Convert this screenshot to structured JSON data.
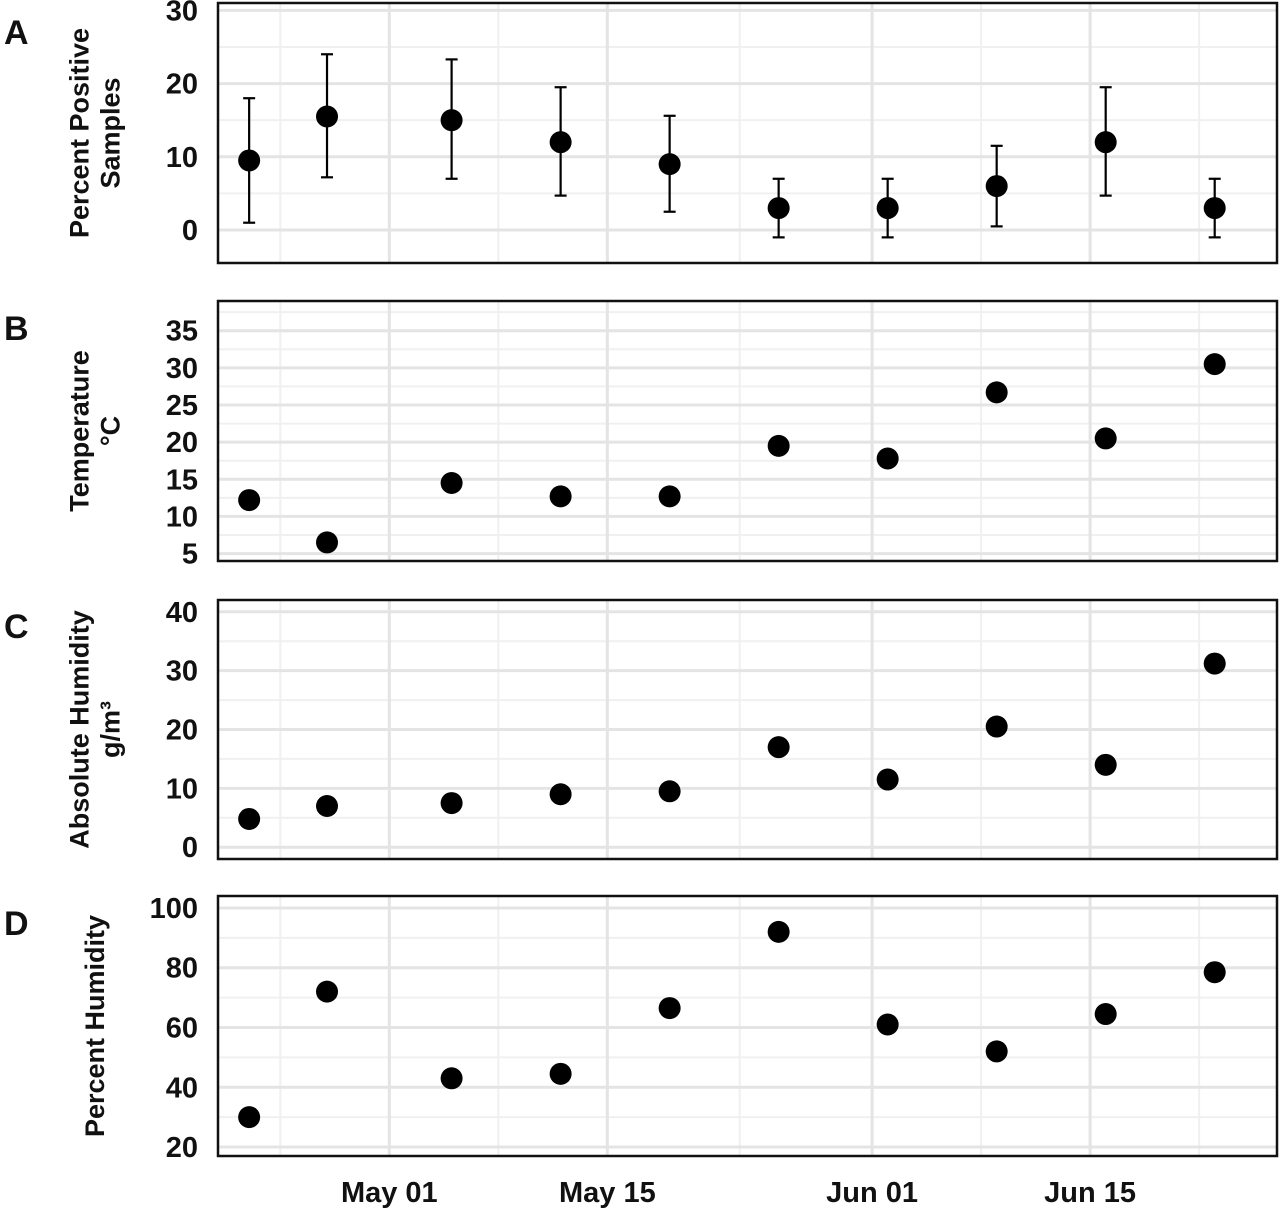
{
  "chart_data": [
    {
      "panel": "A",
      "type": "scatter",
      "ylabel": [
        "Percent Positive",
        "Samples"
      ],
      "ylim": [
        -4.5,
        31
      ],
      "yticks": [
        0,
        10,
        20,
        30
      ],
      "x": [
        "2020-04-22",
        "2020-04-27",
        "2020-05-05",
        "2020-05-12",
        "2020-05-19",
        "2020-05-26",
        "2020-06-02",
        "2020-06-09",
        "2020-06-16",
        "2020-06-23"
      ],
      "y": [
        9.5,
        15.5,
        15.0,
        12.0,
        9.0,
        3.0,
        3.0,
        6.0,
        12.0,
        3.0
      ],
      "error_low": [
        1.0,
        7.2,
        7.0,
        4.7,
        2.5,
        -1.0,
        -1.0,
        0.5,
        4.7,
        -1.0
      ],
      "error_high": [
        18.0,
        24.0,
        23.3,
        19.5,
        15.6,
        7.0,
        7.0,
        11.5,
        19.5,
        7.0
      ],
      "xlim": [
        "2020-04-20",
        "2020-06-27"
      ],
      "grid": true
    },
    {
      "panel": "B",
      "type": "scatter",
      "ylabel": [
        "Temperature",
        "°C"
      ],
      "ylim": [
        4,
        39
      ],
      "yticks": [
        5,
        10,
        15,
        20,
        25,
        30,
        35
      ],
      "x": [
        "2020-04-22",
        "2020-04-27",
        "2020-05-05",
        "2020-05-12",
        "2020-05-19",
        "2020-05-26",
        "2020-06-02",
        "2020-06-09",
        "2020-06-16",
        "2020-06-23"
      ],
      "y": [
        12.2,
        6.5,
        14.5,
        12.7,
        12.7,
        19.5,
        17.8,
        26.7,
        20.5,
        30.5
      ],
      "xlim": [
        "2020-04-20",
        "2020-06-27"
      ],
      "grid": true
    },
    {
      "panel": "C",
      "type": "scatter",
      "ylabel": [
        "Absolute Humidity",
        "g/m³"
      ],
      "ylim": [
        -2,
        42
      ],
      "yticks": [
        0,
        10,
        20,
        30,
        40
      ],
      "x": [
        "2020-04-22",
        "2020-04-27",
        "2020-05-05",
        "2020-05-12",
        "2020-05-19",
        "2020-05-26",
        "2020-06-02",
        "2020-06-09",
        "2020-06-16",
        "2020-06-23"
      ],
      "y": [
        4.8,
        7.0,
        7.5,
        9.0,
        9.5,
        17.0,
        11.5,
        20.5,
        14.0,
        31.2
      ],
      "xlim": [
        "2020-04-20",
        "2020-06-27"
      ],
      "grid": true
    },
    {
      "panel": "D",
      "type": "scatter",
      "ylabel": [
        "Percent Humidity"
      ],
      "ylim": [
        17,
        104
      ],
      "yticks": [
        20,
        40,
        60,
        80,
        100
      ],
      "x": [
        "2020-04-22",
        "2020-04-27",
        "2020-05-05",
        "2020-05-12",
        "2020-05-19",
        "2020-05-26",
        "2020-06-02",
        "2020-06-09",
        "2020-06-16",
        "2020-06-23"
      ],
      "y": [
        30,
        72,
        43,
        44.5,
        66.5,
        92,
        61,
        52,
        64.5,
        78.5
      ],
      "xlim": [
        "2020-04-20",
        "2020-06-27"
      ],
      "grid": true
    }
  ],
  "x_axis": {
    "tick_labels": [
      "May 01",
      "May 15",
      "Jun 01",
      "Jun 15"
    ],
    "tick_dates": [
      "2020-05-01",
      "2020-05-15",
      "2020-06-01",
      "2020-06-15"
    ]
  },
  "colors": {
    "points": "#000000",
    "grid_major": "#e4e4e4",
    "grid_minor": "#f0f0f0",
    "frame": "#111111"
  }
}
